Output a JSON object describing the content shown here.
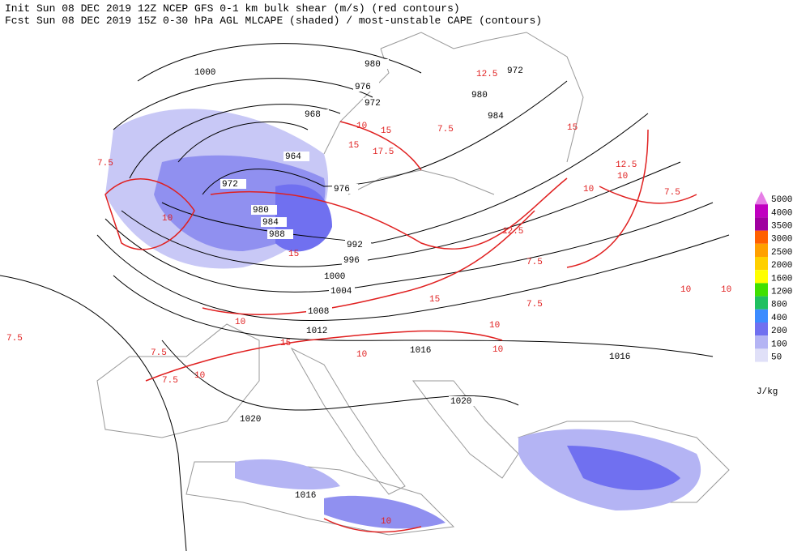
{
  "header": {
    "line1": "Init  Sun 08 DEC 2019 12Z  NCEP GFS 0-1 km bulk shear (m/s) (red contours)",
    "line2": "Fcst Sun 08 DEC 2019 15Z  0-30 hPa AGL MLCAPE (shaded) / most-unstable CAPE (contours)"
  },
  "isobar_labels": [
    "1000",
    "980",
    "976",
    "972",
    "968",
    "964",
    "972",
    "976",
    "980",
    "984",
    "988",
    "992",
    "996",
    "1000",
    "1004",
    "1008",
    "1012",
    "1016",
    "1016",
    "1020",
    "1020",
    "1016",
    "972",
    "980",
    "984"
  ],
  "shear_labels": [
    "7.5",
    "7.5",
    "10",
    "10",
    "15",
    "15",
    "17.5",
    "12.5",
    "10",
    "7.5",
    "10",
    "12.5",
    "15",
    "10",
    "7.5",
    "10",
    "7.5",
    "10",
    "15",
    "7.5",
    "10",
    "15",
    "10",
    "12.5",
    "10",
    "7.5",
    "10",
    "10",
    "15",
    "7.5"
  ],
  "legend": {
    "levels": [
      "5000",
      "4000",
      "3500",
      "3000",
      "2500",
      "2000",
      "1600",
      "1200",
      "800",
      "400",
      "200",
      "100",
      "50"
    ],
    "colors": [
      "#e67ee6",
      "#c000c0",
      "#a000a0",
      "#ff6000",
      "#ffa000",
      "#ffd000",
      "#ffff00",
      "#40e000",
      "#20c060",
      "#3c8cff",
      "#7070f0",
      "#b4b4f4",
      "#e0e0f8"
    ],
    "unit": "J/kg"
  }
}
